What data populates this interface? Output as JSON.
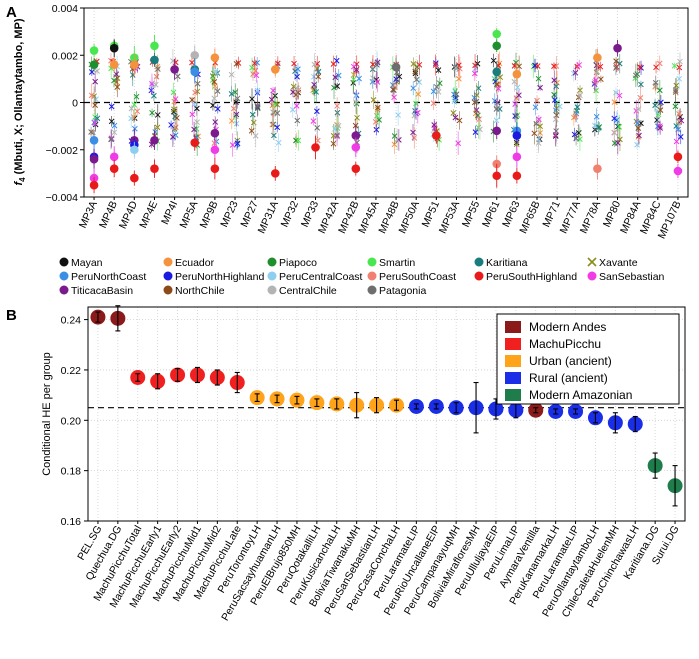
{
  "figure": {
    "panel_a_letter": "A",
    "panel_b_letter": "B"
  },
  "chart_data": [
    {
      "type": "scatter",
      "panel": "A",
      "title": "",
      "ylabel": "f4 (Mbuti, X; Ollantaytambo, MP)",
      "ylabel_prefix": "f",
      "ylabel_sub": "4",
      "ylabel_rest": " (Mbuti, X; Ollantaytambo, MP)",
      "ylim": [
        -0.004,
        0.004
      ],
      "yticks": [
        -0.004,
        -0.002,
        0,
        0.002,
        0.004
      ],
      "ytick_labels": [
        "−0.004",
        "−0.002",
        "0",
        "0.002",
        "0.004"
      ],
      "reference_line": 0,
      "grid": "vertical dotted",
      "legend_placement": "bottom",
      "categories": [
        "MP3A",
        "MP4B",
        "MP4D",
        "MP4E",
        "MP4I",
        "MP5A",
        "MP9B",
        "MP23",
        "MP27",
        "MP31A",
        "MP32",
        "MP33",
        "MP42A",
        "MP42B",
        "MP45A",
        "MP48B",
        "MP50A",
        "MP51",
        "MP53A",
        "MP55",
        "MP61",
        "MP63",
        "MP65B",
        "MP71",
        "MP77A",
        "MP78A",
        "MP80",
        "MP84A",
        "MP84C",
        "MP107B"
      ],
      "groups": [
        {
          "name": "Mayan",
          "color": "#111111"
        },
        {
          "name": "Ecuador",
          "color": "#f5923e"
        },
        {
          "name": "Piapoco",
          "color": "#1e8f2e"
        },
        {
          "name": "Smartin",
          "color": "#49e64f"
        },
        {
          "name": "Karitiana",
          "color": "#1a7d7d"
        },
        {
          "name": "Xavante",
          "color": "#8c8c1a"
        },
        {
          "name": "PeruNorthCoast",
          "color": "#3a8ee6"
        },
        {
          "name": "PeruNorthHighland",
          "color": "#1a1ae0"
        },
        {
          "name": "PeruCentralCoast",
          "color": "#8ecff0"
        },
        {
          "name": "PeruSouthCoast",
          "color": "#f08070"
        },
        {
          "name": "PeruSouthHighland",
          "color": "#e81a1a"
        },
        {
          "name": "SanSebastian",
          "color": "#f03ce6"
        },
        {
          "name": "TiticacaBasin",
          "color": "#7a1a8c"
        },
        {
          "name": "NorthChile",
          "color": "#8c4a1a"
        },
        {
          "name": "CentralChile",
          "color": "#b4b4b4"
        },
        {
          "name": "Patagonia",
          "color": "#6e6e6e"
        }
      ],
      "highlighted_points": [
        {
          "x": "MP3A",
          "y": 0.0022,
          "group": "Smartin"
        },
        {
          "x": "MP3A",
          "y": 0.0016,
          "group": "Piapoco"
        },
        {
          "x": "MP3A",
          "y": -0.0016,
          "group": "PeruNorthCoast"
        },
        {
          "x": "MP3A",
          "y": -0.0023,
          "group": "PeruNorthHighland"
        },
        {
          "x": "MP3A",
          "y": -0.0024,
          "group": "TiticacaBasin"
        },
        {
          "x": "MP3A",
          "y": -0.0032,
          "group": "SanSebastian"
        },
        {
          "x": "MP3A",
          "y": -0.0035,
          "group": "PeruSouthHighland"
        },
        {
          "x": "MP4B",
          "y": 0.0024,
          "group": "Smartin"
        },
        {
          "x": "MP4B",
          "y": 0.0023,
          "group": "Mayan"
        },
        {
          "x": "MP4B",
          "y": 0.0016,
          "group": "Ecuador"
        },
        {
          "x": "MP4B",
          "y": -0.0023,
          "group": "SanSebastian"
        },
        {
          "x": "MP4B",
          "y": -0.0028,
          "group": "PeruSouthHighland"
        },
        {
          "x": "MP4D",
          "y": 0.0019,
          "group": "Smartin"
        },
        {
          "x": "MP4D",
          "y": 0.0016,
          "group": "Ecuador"
        },
        {
          "x": "MP4D",
          "y": -0.0016,
          "group": "TiticacaBasin"
        },
        {
          "x": "MP4D",
          "y": -0.0018,
          "group": "PeruNorthHighland"
        },
        {
          "x": "MP4D",
          "y": -0.002,
          "group": "PeruCentralCoast"
        },
        {
          "x": "MP4D",
          "y": -0.0032,
          "group": "PeruSouthHighland"
        },
        {
          "x": "MP4E",
          "y": 0.0024,
          "group": "Smartin"
        },
        {
          "x": "MP4E",
          "y": 0.0018,
          "group": "Karitiana"
        },
        {
          "x": "MP4E",
          "y": -0.0016,
          "group": "TiticacaBasin"
        },
        {
          "x": "MP4E",
          "y": -0.0028,
          "group": "PeruSouthHighland"
        },
        {
          "x": "MP4I",
          "y": 0.0014,
          "group": "TiticacaBasin"
        },
        {
          "x": "MP5A",
          "y": 0.002,
          "group": "CentralChile"
        },
        {
          "x": "MP5A",
          "y": 0.0014,
          "group": "Karitiana"
        },
        {
          "x": "MP5A",
          "y": 0.0013,
          "group": "PeruNorthCoast"
        },
        {
          "x": "MP5A",
          "y": -0.0017,
          "group": "PeruSouthHighland"
        },
        {
          "x": "MP9B",
          "y": 0.0019,
          "group": "Ecuador"
        },
        {
          "x": "MP9B",
          "y": -0.0013,
          "group": "TiticacaBasin"
        },
        {
          "x": "MP9B",
          "y": -0.002,
          "group": "SanSebastian"
        },
        {
          "x": "MP9B",
          "y": -0.0028,
          "group": "PeruSouthHighland"
        },
        {
          "x": "MP31A",
          "y": 0.0014,
          "group": "Ecuador"
        },
        {
          "x": "MP31A",
          "y": -0.003,
          "group": "PeruSouthHighland"
        },
        {
          "x": "MP33",
          "y": -0.0019,
          "group": "PeruSouthHighland"
        },
        {
          "x": "MP42B",
          "y": -0.0014,
          "group": "TiticacaBasin"
        },
        {
          "x": "MP42B",
          "y": -0.0019,
          "group": "SanSebastian"
        },
        {
          "x": "MP42B",
          "y": -0.0028,
          "group": "PeruSouthHighland"
        },
        {
          "x": "MP48B",
          "y": 0.0015,
          "group": "Patagonia"
        },
        {
          "x": "MP51",
          "y": -0.0014,
          "group": "PeruSouthHighland"
        },
        {
          "x": "MP61",
          "y": 0.0029,
          "group": "Smartin"
        },
        {
          "x": "MP61",
          "y": 0.0024,
          "group": "Piapoco"
        },
        {
          "x": "MP61",
          "y": 0.0013,
          "group": "Karitiana"
        },
        {
          "x": "MP61",
          "y": -0.0012,
          "group": "TiticacaBasin"
        },
        {
          "x": "MP61",
          "y": -0.0026,
          "group": "PeruSouthCoast"
        },
        {
          "x": "MP61",
          "y": -0.0031,
          "group": "PeruSouthHighland"
        },
        {
          "x": "MP63",
          "y": 0.0012,
          "group": "Ecuador"
        },
        {
          "x": "MP63",
          "y": -0.0012,
          "group": "PeruNorthCoast"
        },
        {
          "x": "MP63",
          "y": -0.0014,
          "group": "PeruNorthHighland"
        },
        {
          "x": "MP63",
          "y": -0.0023,
          "group": "SanSebastian"
        },
        {
          "x": "MP63",
          "y": -0.0031,
          "group": "PeruSouthHighland"
        },
        {
          "x": "MP78A",
          "y": 0.0019,
          "group": "Ecuador"
        },
        {
          "x": "MP78A",
          "y": -0.0028,
          "group": "PeruSouthCoast"
        },
        {
          "x": "MP80",
          "y": 0.0023,
          "group": "TiticacaBasin"
        },
        {
          "x": "MP107B",
          "y": -0.0023,
          "group": "PeruSouthHighland"
        },
        {
          "x": "MP107B",
          "y": -0.0029,
          "group": "SanSebastian"
        }
      ]
    },
    {
      "type": "scatter",
      "panel": "B",
      "title": "",
      "ylabel": "Conditional HE per group",
      "ylim": [
        0.16,
        0.245
      ],
      "yticks": [
        0.16,
        0.18,
        0.2,
        0.22,
        0.24
      ],
      "ytick_labels": [
        "0.16",
        "0.18",
        "0.20",
        "0.22",
        "0.24"
      ],
      "reference_line": 0.205,
      "grid": "dotted",
      "legend_placement": "top-right",
      "legend": [
        {
          "name": "Modern Andes",
          "color": "#8b1a1a"
        },
        {
          "name": "MachuPicchu",
          "color": "#f02020"
        },
        {
          "name": "Urban (ancient)",
          "color": "#ffa31a"
        },
        {
          "name": "Rural (ancient)",
          "color": "#1a2ee8"
        },
        {
          "name": "Modern Amazonian",
          "color": "#1e7d4a"
        }
      ],
      "points": [
        {
          "label": "PEL.SG",
          "value": 0.241,
          "err": 0.002,
          "group": "Modern Andes"
        },
        {
          "label": "Quechua.DG",
          "value": 0.2405,
          "err": 0.005,
          "group": "Modern Andes"
        },
        {
          "label": "MachuPicchuTotal",
          "value": 0.217,
          "err": 0.0015,
          "group": "MachuPicchu"
        },
        {
          "label": "MachuPicchuEarly1",
          "value": 0.2155,
          "err": 0.003,
          "group": "MachuPicchu"
        },
        {
          "label": "MachuPicchuEarly2",
          "value": 0.218,
          "err": 0.0025,
          "group": "MachuPicchu"
        },
        {
          "label": "MachuPicchuMid1",
          "value": 0.218,
          "err": 0.003,
          "group": "MachuPicchu"
        },
        {
          "label": "MachuPicchuMid2",
          "value": 0.217,
          "err": 0.003,
          "group": "MachuPicchu"
        },
        {
          "label": "MachuPicchuLate",
          "value": 0.215,
          "err": 0.004,
          "group": "MachuPicchu"
        },
        {
          "label": "PeruTorontoyLH",
          "value": 0.209,
          "err": 0.0015,
          "group": "Urban (ancient)"
        },
        {
          "label": "PeruSacsayhuamanLH",
          "value": 0.2085,
          "err": 0.0015,
          "group": "Urban (ancient)"
        },
        {
          "label": "PeruElBrujo850MH",
          "value": 0.208,
          "err": 0.0015,
          "group": "Urban (ancient)"
        },
        {
          "label": "PeruQotakalliLH",
          "value": 0.207,
          "err": 0.0015,
          "group": "Urban (ancient)"
        },
        {
          "label": "PeruKusicanchaLH",
          "value": 0.2065,
          "err": 0.002,
          "group": "Urban (ancient)"
        },
        {
          "label": "BoliviaTiwanakuMH",
          "value": 0.206,
          "err": 0.005,
          "group": "Urban (ancient)"
        },
        {
          "label": "PeruSanSebastianLH",
          "value": 0.206,
          "err": 0.003,
          "group": "Urban (ancient)"
        },
        {
          "label": "PeruCasaConchaLH",
          "value": 0.206,
          "err": 0.002,
          "group": "Urban (ancient)"
        },
        {
          "label": "PeruLaramateLIP",
          "value": 0.2055,
          "err": 0.001,
          "group": "Rural (ancient)"
        },
        {
          "label": "PeruRioUncallaneEIP",
          "value": 0.2055,
          "err": 0.001,
          "group": "Rural (ancient)"
        },
        {
          "label": "PeruCampanayuqMH",
          "value": 0.205,
          "err": 0.002,
          "group": "Rural (ancient)"
        },
        {
          "label": "BoliviaMirafloresMH",
          "value": 0.205,
          "err": 0.01,
          "group": "Rural (ancient)"
        },
        {
          "label": "PeruUlluljayaEIP",
          "value": 0.2045,
          "err": 0.004,
          "group": "Rural (ancient)"
        },
        {
          "label": "PeruLimaLIP",
          "value": 0.204,
          "err": 0.003,
          "group": "Rural (ancient)"
        },
        {
          "label": "AymaraVentilla",
          "value": 0.204,
          "err": 0.001,
          "group": "Modern Andes"
        },
        {
          "label": "PeruKanamarkaLH",
          "value": 0.2035,
          "err": 0.001,
          "group": "Rural (ancient)"
        },
        {
          "label": "PeruLaramateLIP",
          "value": 0.2035,
          "err": 0.001,
          "group": "Rural (ancient)"
        },
        {
          "label": "PeruOllantaytamboLH",
          "value": 0.201,
          "err": 0.002,
          "group": "Rural (ancient)"
        },
        {
          "label": "ChileCaletaHuelenMH",
          "value": 0.199,
          "err": 0.004,
          "group": "Rural (ancient)"
        },
        {
          "label": "PeruChinchawasLH",
          "value": 0.1985,
          "err": 0.003,
          "group": "Rural (ancient)"
        },
        {
          "label": "Karitiana.DG",
          "value": 0.182,
          "err": 0.005,
          "group": "Modern Amazonian"
        },
        {
          "label": "Surui.DG",
          "value": 0.174,
          "err": 0.008,
          "group": "Modern Amazonian"
        }
      ]
    }
  ]
}
